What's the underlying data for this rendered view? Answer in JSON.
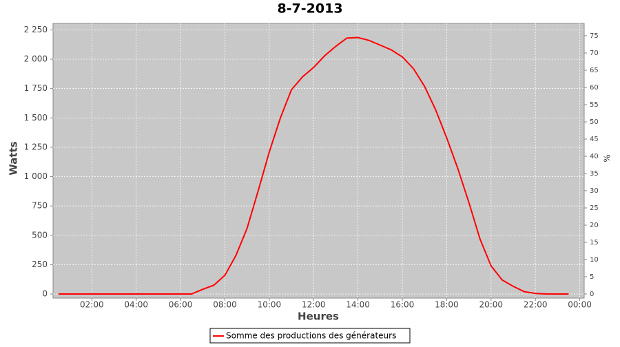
{
  "chart_data": {
    "type": "line",
    "title": "8-7-2013",
    "x_label": "Heures",
    "y_label": "Watts",
    "y2_label": "%",
    "x": [
      0.5,
      1,
      1.5,
      2,
      2.5,
      3,
      3.5,
      4,
      4.5,
      5,
      5.5,
      6,
      6.5,
      7,
      7.5,
      8,
      8.5,
      9,
      9.5,
      10,
      10.5,
      11,
      11.5,
      12,
      12.5,
      13,
      13.5,
      14,
      14.5,
      15,
      15.5,
      16,
      16.5,
      17,
      17.5,
      18,
      18.5,
      19,
      19.5,
      20,
      20.5,
      21,
      21.5,
      22,
      22.5,
      23,
      23.5
    ],
    "series": [
      {
        "name": "Somme des productions des  générateurs",
        "color": "#ff0000",
        "values": [
          0,
          0,
          0,
          0,
          0,
          0,
          0,
          0,
          0,
          0,
          0,
          0,
          0,
          40,
          75,
          160,
          330,
          560,
          880,
          1210,
          1500,
          1740,
          1850,
          1930,
          2030,
          2110,
          2180,
          2185,
          2160,
          2120,
          2080,
          2020,
          1920,
          1770,
          1570,
          1330,
          1070,
          780,
          470,
          240,
          120,
          65,
          20,
          5,
          0,
          0,
          0
        ]
      }
    ],
    "xlim": [
      0.25,
      24.2
    ],
    "xticks": [
      {
        "value": 2,
        "label": "02:00"
      },
      {
        "value": 4,
        "label": "04:00"
      },
      {
        "value": 6,
        "label": "06:00"
      },
      {
        "value": 8,
        "label": "08:00"
      },
      {
        "value": 10,
        "label": "10:00"
      },
      {
        "value": 12,
        "label": "12:00"
      },
      {
        "value": 14,
        "label": "14:00"
      },
      {
        "value": 16,
        "label": "16:00"
      },
      {
        "value": 18,
        "label": "18:00"
      },
      {
        "value": 20,
        "label": "20:00"
      },
      {
        "value": 22,
        "label": "22:00"
      },
      {
        "value": 24,
        "label": "00:00"
      }
    ],
    "ylim": [
      -35,
      2305
    ],
    "yticks": [
      0,
      250,
      500,
      750,
      {
        "value": 1000,
        "label": "1 000"
      },
      {
        "value": 1250,
        "label": "1 250"
      },
      {
        "value": 1500,
        "label": "1 500"
      },
      {
        "value": 1750,
        "label": "1 750"
      },
      {
        "value": 2000,
        "label": "2 000"
      },
      {
        "value": 2250,
        "label": "2 250"
      }
    ],
    "y2lim": [
      -1.2,
      78.6
    ],
    "y2ticks": [
      0,
      5,
      10,
      15,
      20,
      25,
      30,
      35,
      40,
      45,
      50,
      55,
      60,
      65,
      70,
      75
    ],
    "grid": true,
    "legend": "bottom"
  }
}
